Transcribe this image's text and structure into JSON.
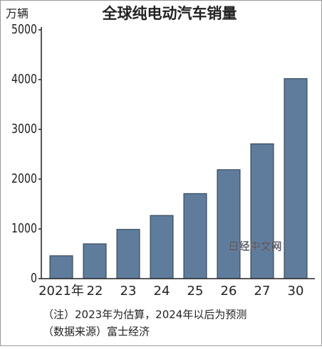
{
  "chart_data": {
    "type": "bar",
    "title": "全球纯电动汽车销量",
    "y_label": "万辆",
    "categories": [
      "2021年",
      "22",
      "23",
      "24",
      "25",
      "26",
      "27",
      "30"
    ],
    "values": [
      460,
      700,
      990,
      1270,
      1710,
      2190,
      2710,
      4020
    ],
    "color": "#5f7c9c",
    "ylim": [
      0,
      5000
    ],
    "yticks": [
      0,
      1000,
      2000,
      3000,
      4000,
      5000
    ],
    "watermark": "日经中文网",
    "notes": [
      "（注）2023年为估算，2024年以后为预测",
      "（数据来源）富士经济"
    ]
  }
}
